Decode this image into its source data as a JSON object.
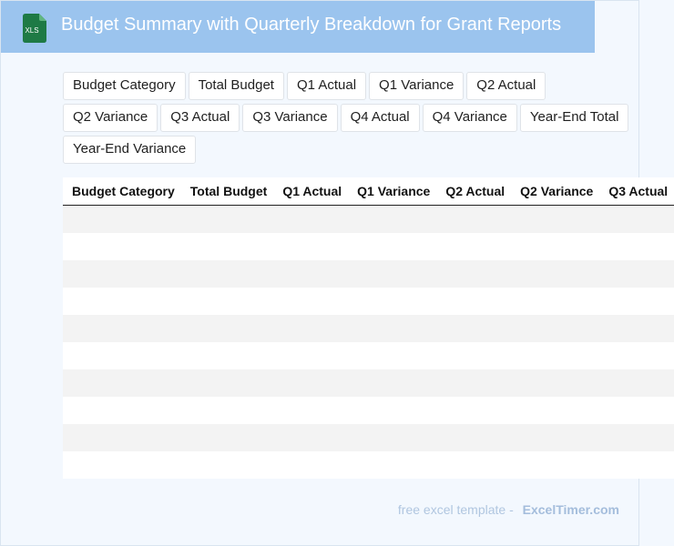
{
  "header": {
    "icon": "xls-file-icon",
    "icon_label": "XLS",
    "title": "Budget Summary with Quarterly Breakdown for Grant Reports"
  },
  "columns": [
    "Budget Category",
    "Total Budget",
    "Q1 Actual",
    "Q1 Variance",
    "Q2 Actual",
    "Q2 Variance",
    "Q3 Actual",
    "Q3 Variance",
    "Q4 Actual",
    "Q4 Variance",
    "Year-End Total",
    "Year-End Variance"
  ],
  "table": {
    "header_label_0": "Budget Category",
    "header_label_1": "Total Budget",
    "header_label_2": "Q1 Actual",
    "header_label_3": "Q1 Variance",
    "header_label_4": "Q2 Actual",
    "header_label_5": "Q2 Variance",
    "header_label_6": "Q3 Actual",
    "empty_row_count": 10
  },
  "footer": {
    "free_text": "free excel template -",
    "brand": "ExcelTimer.com"
  },
  "colors": {
    "header_bg": "#9bc4ee",
    "page_bg": "#f3f8fe",
    "icon_green": "#1e7a45",
    "stripe": "#f3f3f3"
  }
}
